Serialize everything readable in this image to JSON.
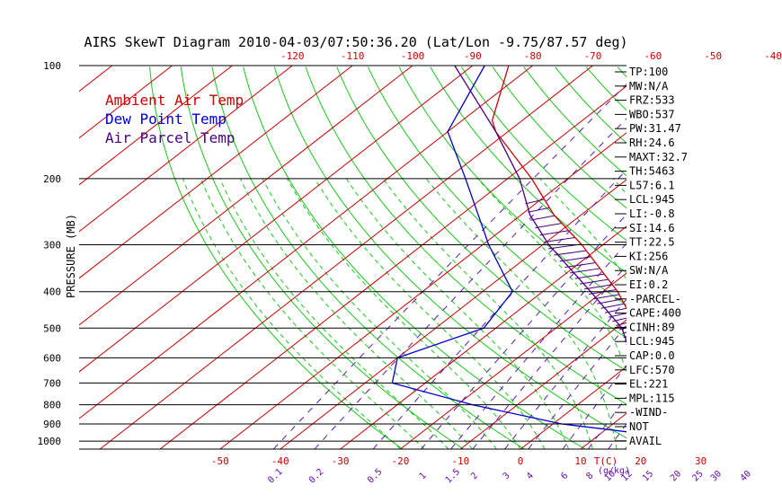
{
  "title": "AIRS SkewT Diagram 2010-04-03/07:50:36.20 (Lat/Lon -9.75/87.57 deg)",
  "chart_data": {
    "type": "skewt",
    "ylabel": "PRESSURE (MB)",
    "pressure_levels": [
      100,
      200,
      300,
      400,
      500,
      600,
      700,
      800,
      900,
      1000
    ],
    "pressure_range": [
      100,
      1050
    ],
    "top_temp_ticks": [
      "-120",
      "-110",
      "-100",
      "-90",
      "-80",
      "-70",
      "-60",
      "-50",
      "-40"
    ],
    "bottom_temp_ticks": [
      "-50",
      "-40",
      "-30",
      "-20",
      "-10",
      "0",
      "10",
      "20",
      "30"
    ],
    "bottom_temp_unit": "T(C)",
    "mixing_ratio_labels": [
      "0.1",
      "0.2",
      "0.5",
      "1",
      "1.5",
      "2",
      "3",
      "4",
      "6",
      "8",
      "10",
      "12",
      "15",
      "20",
      "25",
      "30",
      "40"
    ],
    "mixing_ratio_unit": "(g/kg)",
    "legend": [
      {
        "name": "Ambient Air Temp",
        "color": "#cc0000"
      },
      {
        "name": "Dew Point Temp",
        "color": "#0000cc"
      },
      {
        "name": "Air Parcel Temp",
        "color": "#4b0082"
      }
    ],
    "series": [
      {
        "name": "Ambient Air Temp",
        "color": "#cc0000",
        "points": [
          [
            1000,
            27
          ],
          [
            990,
            25
          ],
          [
            950,
            21.5
          ],
          [
            900,
            19
          ],
          [
            850,
            15.7
          ],
          [
            800,
            12.9
          ],
          [
            700,
            7.7
          ],
          [
            600,
            0.6
          ],
          [
            500,
            -6.5
          ],
          [
            400,
            -17.5
          ],
          [
            300,
            -33.5
          ],
          [
            250,
            -44.5
          ],
          [
            200,
            -56
          ],
          [
            150,
            -72
          ],
          [
            140,
            -75
          ],
          [
            100,
            -84
          ]
        ]
      },
      {
        "name": "Dew Point Temp",
        "color": "#0000cc",
        "points": [
          [
            1000,
            21.6
          ],
          [
            970,
            19.5
          ],
          [
            950,
            15.5
          ],
          [
            900,
            1.5
          ],
          [
            800,
            -17.5
          ],
          [
            700,
            -35.5
          ],
          [
            600,
            -40
          ],
          [
            500,
            -32
          ],
          [
            400,
            -35
          ],
          [
            300,
            -49
          ],
          [
            200,
            -67
          ],
          [
            150,
            -80
          ],
          [
            100,
            -88
          ]
        ]
      },
      {
        "name": "Air Parcel Temp",
        "color": "#4b0082",
        "points": [
          [
            1000,
            27
          ],
          [
            990,
            24.5
          ],
          [
            950,
            22
          ],
          [
            900,
            19
          ],
          [
            850,
            16
          ],
          [
            800,
            12.7
          ],
          [
            700,
            6.5
          ],
          [
            600,
            -1
          ],
          [
            500,
            -9
          ],
          [
            400,
            -22
          ],
          [
            300,
            -39
          ],
          [
            250,
            -48.5
          ],
          [
            200,
            -58
          ],
          [
            150,
            -72
          ],
          [
            100,
            -93
          ]
        ]
      }
    ]
  },
  "indices": [
    "TP:100",
    "MW:N/A",
    "FRZ:533",
    "WBO:537",
    "PW:31.47",
    "RH:24.6",
    "MAXT:32.7",
    "TH:5463",
    "L57:6.1",
    "LCL:945",
    "LI:-0.8",
    "SI:14.6",
    "TT:22.5",
    "KI:256",
    "SW:N/A",
    "EI:0.2",
    "-PARCEL-",
    "CAPE:400",
    "CINH:89",
    "LCL:945",
    "CAP:0.0",
    "LFC:570",
    "EL:221",
    "MPL:115",
    "-WIND-",
    "NOT",
    "AVAIL"
  ]
}
